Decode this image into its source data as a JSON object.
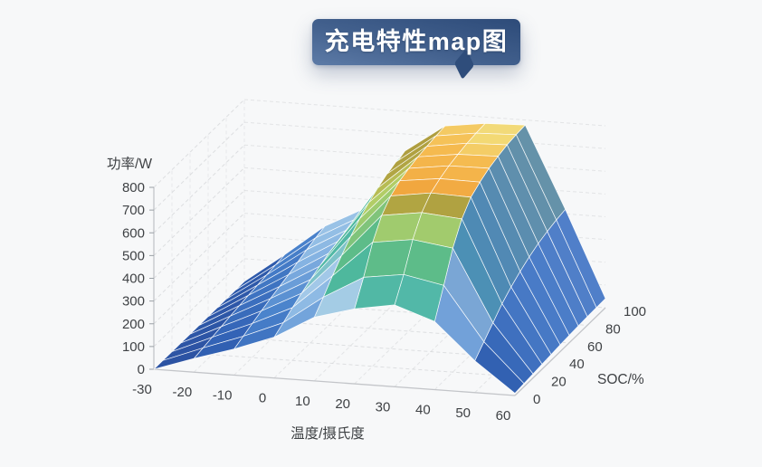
{
  "title": {
    "text": "充电特性map图"
  },
  "banner": {
    "gradient_from": "#5d7ba7",
    "gradient_to": "#2d4b79"
  },
  "background_color": "#f7f8f9",
  "chart_data": {
    "type": "surface",
    "title": "充电特性map图",
    "xlabel": "温度/摄氏度",
    "ylabel": "SOC/%",
    "zlabel": "功率/W",
    "x": [
      -30,
      -20,
      -10,
      0,
      10,
      20,
      30,
      40,
      50,
      60
    ],
    "y": [
      0,
      10,
      20,
      30,
      40,
      50,
      60,
      70,
      80,
      90,
      100
    ],
    "x_ticks": [
      -30,
      -20,
      -10,
      0,
      10,
      20,
      30,
      40,
      50,
      60
    ],
    "y_ticks": [
      0,
      20,
      40,
      60,
      80,
      100
    ],
    "z_ticks": [
      0,
      100,
      200,
      300,
      400,
      500,
      600,
      700,
      800
    ],
    "zlim": [
      0,
      800
    ],
    "grid": "dashed",
    "legend": "none",
    "z_grid_rows_by_soc": [
      [
        0,
        60,
        115,
        180,
        280,
        330,
        360,
        300,
        140,
        10
      ],
      [
        0,
        68,
        132,
        205,
        330,
        430,
        455,
        420,
        185,
        14
      ],
      [
        0,
        76,
        150,
        232,
        385,
        545,
        570,
        545,
        230,
        18
      ],
      [
        0,
        84,
        166,
        256,
        435,
        625,
        650,
        635,
        275,
        22
      ],
      [
        0,
        92,
        182,
        278,
        480,
        672,
        698,
        692,
        310,
        26
      ],
      [
        0,
        99,
        196,
        298,
        520,
        700,
        722,
        720,
        340,
        30
      ],
      [
        0,
        106,
        210,
        316,
        552,
        716,
        740,
        742,
        365,
        33
      ],
      [
        0,
        112,
        226,
        330,
        578,
        728,
        752,
        756,
        385,
        36
      ],
      [
        0,
        118,
        242,
        342,
        600,
        736,
        762,
        768,
        400,
        38
      ],
      [
        0,
        124,
        256,
        352,
        615,
        743,
        768,
        774,
        412,
        39
      ],
      [
        0,
        130,
        268,
        360,
        625,
        748,
        772,
        778,
        420,
        40
      ]
    ],
    "colormap_stops": [
      [
        0.0,
        "#2a4d9b"
      ],
      [
        0.125,
        "#3161b4"
      ],
      [
        0.25,
        "#4a83cc"
      ],
      [
        0.34,
        "#86b4e2"
      ],
      [
        0.425,
        "#a9cde9"
      ],
      [
        0.48,
        "#52b8a8"
      ],
      [
        0.56,
        "#4cb895"
      ],
      [
        0.64,
        "#62bd86"
      ],
      [
        0.73,
        "#96ca72"
      ],
      [
        0.795,
        "#bcce62"
      ],
      [
        0.815,
        "#b2a844"
      ],
      [
        0.86,
        "#ae9c3e"
      ],
      [
        0.872,
        "#f1a73f"
      ],
      [
        0.935,
        "#f5bb50"
      ],
      [
        0.958,
        "#f3d873"
      ],
      [
        1.0,
        "#f0e490"
      ]
    ],
    "cliff_shade_color": "#4a77c4",
    "mesh_line_color": "#ffffff",
    "axis_line_color": "#c3c5c9",
    "grid_line_color": "#c9cbce",
    "tick_label_color": "#3f4245"
  }
}
